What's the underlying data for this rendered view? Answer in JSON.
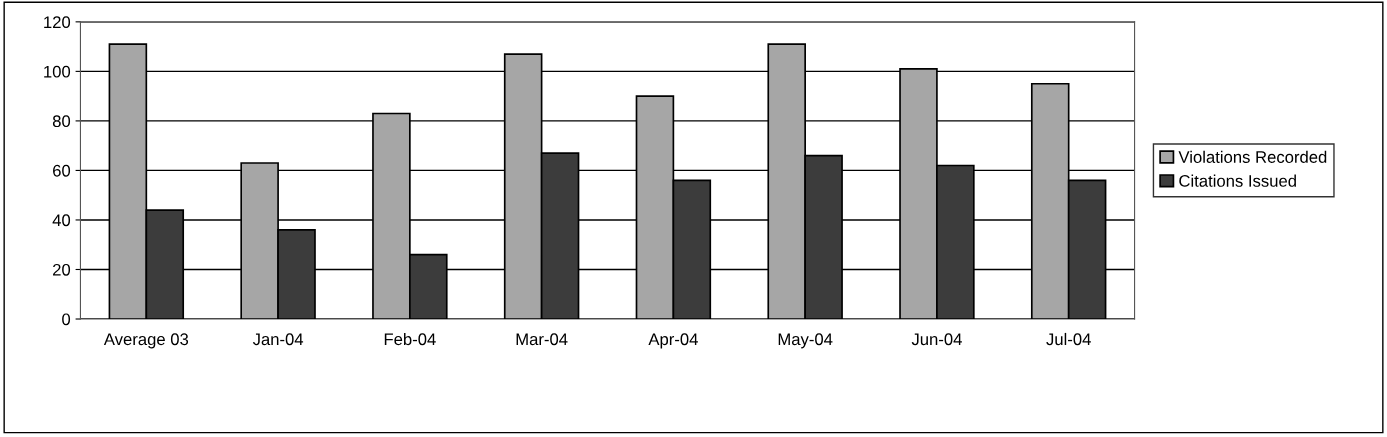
{
  "chart_data": {
    "type": "bar",
    "categories": [
      "Average 03",
      "Jan-04",
      "Feb-04",
      "Mar-04",
      "Apr-04",
      "May-04",
      "Jun-04",
      "Jul-04"
    ],
    "series": [
      {
        "name": "Violations Recorded",
        "color": "#a6a6a6",
        "values": [
          111,
          63,
          83,
          107,
          90,
          111,
          101,
          95
        ]
      },
      {
        "name": "Citations Issued",
        "color": "#3c3c3c",
        "values": [
          44,
          36,
          26,
          67,
          56,
          66,
          62,
          56
        ]
      }
    ],
    "ylim": [
      0,
      120
    ],
    "yticks": [
      0,
      20,
      40,
      60,
      80,
      100,
      120
    ],
    "grid": "y",
    "legend": "right"
  }
}
